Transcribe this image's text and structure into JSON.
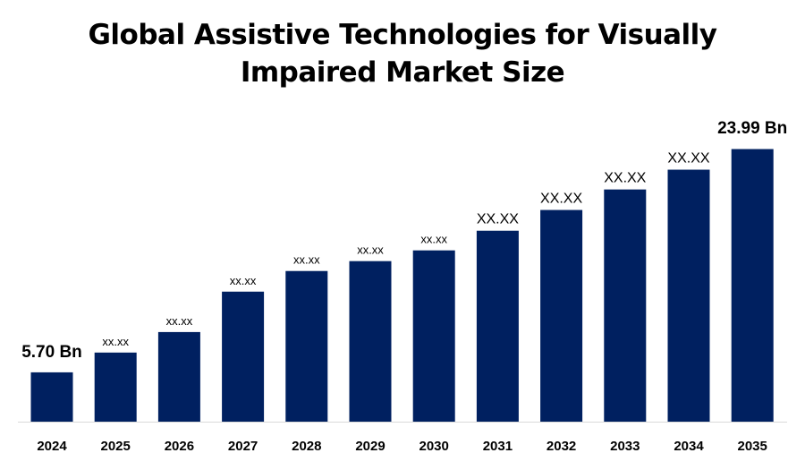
{
  "chart_data": {
    "type": "bar",
    "title_lines": [
      "Global Assistive Technologies for Visually",
      "Impaired Market Size"
    ],
    "categories": [
      "2024",
      "2025",
      "2026",
      "2027",
      "2028",
      "2029",
      "2030",
      "2031",
      "2032",
      "2033",
      "2034",
      "2035"
    ],
    "values": [
      5.7,
      7.32,
      9.0,
      12.31,
      14.0,
      14.81,
      15.69,
      17.3,
      19.0,
      20.68,
      22.3,
      23.99
    ],
    "data_labels": [
      "5.70 Bn",
      "xx.xx",
      "xx.xx",
      "xx.xx",
      "xx.xx",
      "xx.xx",
      "xx.xx",
      "XX.XX",
      "XX.XX",
      "XX.XX",
      "XX.XX",
      "23.99 Bn"
    ],
    "xlabel": "",
    "ylabel": "",
    "ylim": [
      1.66,
      27.4
    ],
    "grid": false,
    "legend": "none",
    "colors": {
      "bar": "#002060",
      "axis": "#d9d9d9",
      "text": "#000000"
    }
  }
}
